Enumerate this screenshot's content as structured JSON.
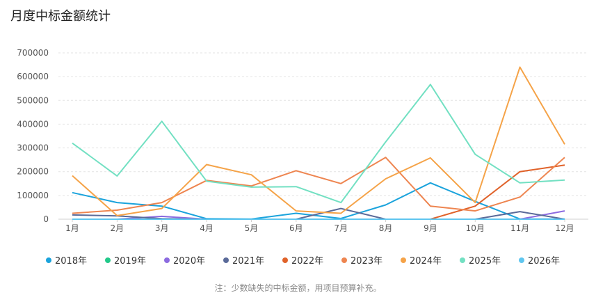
{
  "chart_data": {
    "type": "line",
    "title": "月度中标金额统计",
    "categories": [
      "1月",
      "2月",
      "3月",
      "4月",
      "5月",
      "6月",
      "7月",
      "8月",
      "9月",
      "10月",
      "11月",
      "12月"
    ],
    "ylim": [
      0,
      700000
    ],
    "yticks": [
      0,
      100000,
      200000,
      300000,
      400000,
      500000,
      600000,
      700000
    ],
    "grid": true,
    "legend_position": "bottom",
    "series": [
      {
        "name": "2018年",
        "color": "#1aa3dc",
        "values": [
          112000,
          70000,
          55000,
          2000,
          1000,
          25000,
          3000,
          60000,
          153000,
          75000,
          1000,
          1000
        ]
      },
      {
        "name": "2019年",
        "color": "#22c98a",
        "values": [
          0,
          0,
          0,
          0,
          0,
          0,
          0,
          0,
          0,
          0,
          0,
          0
        ]
      },
      {
        "name": "2020年",
        "color": "#8c6be0",
        "values": [
          0,
          0,
          12000,
          0,
          0,
          0,
          0,
          0,
          0,
          0,
          0,
          35000
        ]
      },
      {
        "name": "2021年",
        "color": "#5a6a99",
        "values": [
          18000,
          14000,
          2000,
          0,
          0,
          0,
          45000,
          0,
          0,
          0,
          32000,
          0
        ]
      },
      {
        "name": "2022年",
        "color": "#e0622a",
        "values": [
          0,
          0,
          0,
          0,
          0,
          0,
          0,
          0,
          0,
          55000,
          200000,
          228000
        ]
      },
      {
        "name": "2023年",
        "color": "#ee8550",
        "values": [
          25000,
          38000,
          70000,
          163000,
          140000,
          204000,
          150000,
          260000,
          55000,
          35000,
          93000,
          260000
        ]
      },
      {
        "name": "2024年",
        "color": "#f5a348",
        "values": [
          183000,
          15000,
          45000,
          230000,
          187000,
          35000,
          25000,
          170000,
          258000,
          70000,
          640000,
          315000
        ]
      },
      {
        "name": "2025年",
        "color": "#72e0c2",
        "values": [
          320000,
          182000,
          412000,
          160000,
          135000,
          137000,
          70000,
          325000,
          567000,
          273000,
          153000,
          165000
        ]
      },
      {
        "name": "2026年",
        "color": "#5fc6ef",
        "values": [
          0,
          0,
          0,
          0,
          0,
          0,
          0,
          0,
          0,
          0,
          0,
          0
        ]
      }
    ],
    "note": "注：少数缺失的中标金额，用项目预算补充。"
  }
}
